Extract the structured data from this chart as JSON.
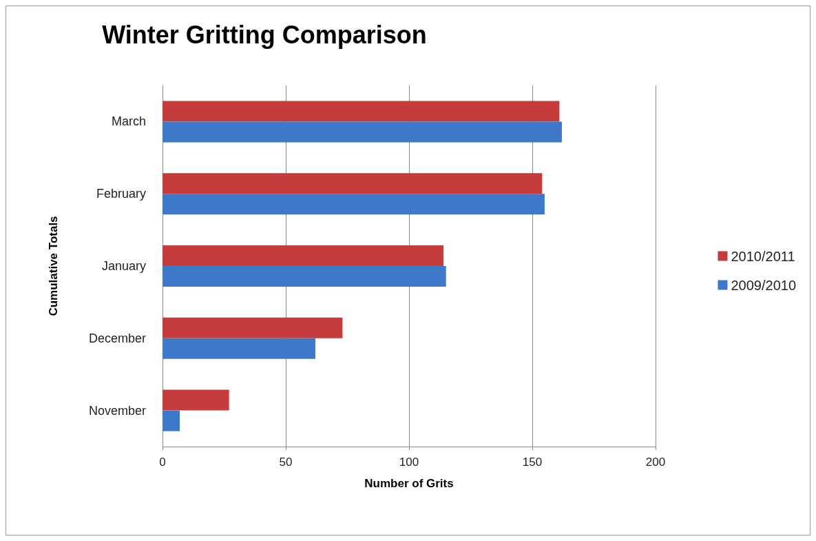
{
  "chart_data": {
    "type": "bar",
    "orientation": "horizontal",
    "title": "Winter Gritting Comparison",
    "xlabel": "Number of Grits",
    "ylabel": "Cumulative Totals",
    "categories": [
      "March",
      "February",
      "January",
      "December",
      "November"
    ],
    "series": [
      {
        "name": "2010/2011",
        "color": "#c63b3b",
        "values": [
          161,
          154,
          114,
          73,
          27
        ]
      },
      {
        "name": "2009/2010",
        "color": "#3d78c9",
        "values": [
          162,
          155,
          115,
          62,
          7
        ]
      }
    ],
    "xlim": [
      0,
      200
    ],
    "xticks": [
      0,
      50,
      100,
      150,
      200
    ],
    "grid": "x",
    "legend": "right"
  }
}
